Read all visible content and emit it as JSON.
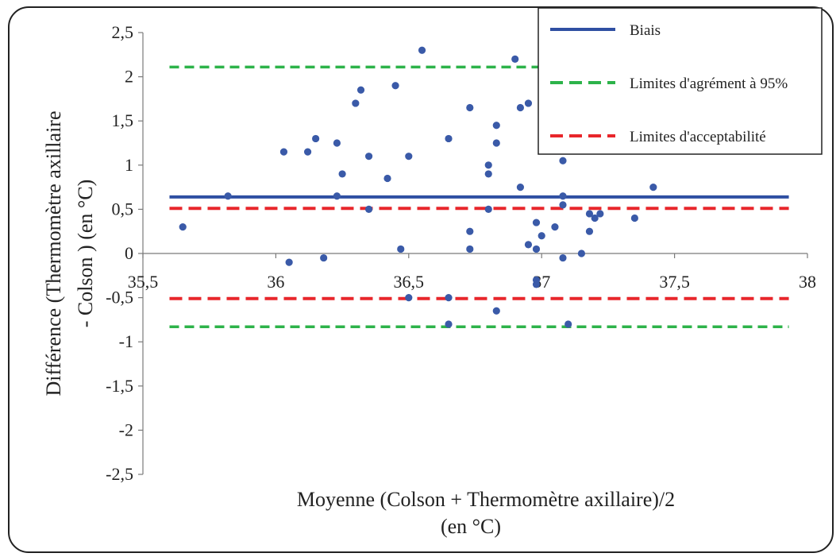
{
  "chart_data": {
    "type": "scatter",
    "xlabel_lines": [
      "Moyenne (Colson + Thermomètre axillaire)/2",
      "(en °C)"
    ],
    "ylabel_lines": [
      "Différence (Thermomètre axillaire",
      "- Colson ) (en °C)"
    ],
    "xlim": [
      35.5,
      38
    ],
    "ylim": [
      -2.5,
      2.5
    ],
    "x_ticks": [
      {
        "value": 35.5,
        "label": "35,5"
      },
      {
        "value": 36,
        "label": "36"
      },
      {
        "value": 36.5,
        "label": "36,5"
      },
      {
        "value": 37,
        "label": "37"
      },
      {
        "value": 37.5,
        "label": "37,5"
      },
      {
        "value": 38,
        "label": "38"
      }
    ],
    "y_ticks": [
      {
        "value": 2.5,
        "label": "2,5"
      },
      {
        "value": 2,
        "label": "2"
      },
      {
        "value": 1.5,
        "label": "1,5"
      },
      {
        "value": 1,
        "label": "1"
      },
      {
        "value": 0.5,
        "label": "0,5"
      },
      {
        "value": 0,
        "label": "0"
      },
      {
        "value": -0.5,
        "label": "-0,5"
      },
      {
        "value": -1,
        "label": "-1"
      },
      {
        "value": -1.5,
        "label": "-1,5"
      },
      {
        "value": -2,
        "label": "-2"
      },
      {
        "value": -2.5,
        "label": "-2,5"
      }
    ],
    "grid": {
      "horizontal": false,
      "vertical": false
    },
    "point_color": "#3a5aa8",
    "points": [
      [
        35.65,
        0.3
      ],
      [
        35.82,
        0.65
      ],
      [
        36.03,
        1.15
      ],
      [
        36.05,
        -0.1
      ],
      [
        36.12,
        1.15
      ],
      [
        36.15,
        1.3
      ],
      [
        36.18,
        -0.05
      ],
      [
        36.23,
        1.25
      ],
      [
        36.23,
        0.65
      ],
      [
        36.25,
        0.9
      ],
      [
        36.3,
        1.7
      ],
      [
        36.32,
        1.85
      ],
      [
        36.35,
        1.1
      ],
      [
        36.35,
        0.5
      ],
      [
        36.42,
        0.85
      ],
      [
        36.45,
        1.9
      ],
      [
        36.47,
        0.05
      ],
      [
        36.5,
        1.1
      ],
      [
        36.5,
        -0.5
      ],
      [
        36.55,
        2.3
      ],
      [
        36.65,
        1.3
      ],
      [
        36.65,
        -0.5
      ],
      [
        36.65,
        -0.8
      ],
      [
        36.73,
        1.65
      ],
      [
        36.73,
        0.25
      ],
      [
        36.73,
        0.05
      ],
      [
        36.8,
        1.0
      ],
      [
        36.8,
        0.9
      ],
      [
        36.8,
        0.5
      ],
      [
        36.83,
        1.45
      ],
      [
        36.83,
        1.25
      ],
      [
        36.83,
        -0.65
      ],
      [
        36.9,
        2.2
      ],
      [
        36.92,
        1.65
      ],
      [
        36.92,
        0.75
      ],
      [
        36.95,
        1.7
      ],
      [
        36.95,
        0.1
      ],
      [
        36.98,
        0.35
      ],
      [
        36.98,
        0.05
      ],
      [
        36.98,
        -0.3
      ],
      [
        36.98,
        -0.35
      ],
      [
        37.0,
        0.2
      ],
      [
        37.05,
        0.3
      ],
      [
        37.08,
        1.05
      ],
      [
        37.08,
        0.65
      ],
      [
        37.08,
        0.55
      ],
      [
        37.08,
        -0.05
      ],
      [
        37.1,
        -0.8
      ],
      [
        37.15,
        0.0
      ],
      [
        37.18,
        0.45
      ],
      [
        37.18,
        0.25
      ],
      [
        37.2,
        0.4
      ],
      [
        37.22,
        0.45
      ],
      [
        37.35,
        0.4
      ],
      [
        37.42,
        0.75
      ]
    ],
    "lines": [
      {
        "name": "Biais",
        "y": 0.64,
        "color": "#2f4fa2",
        "style": "solid"
      },
      {
        "name": "Limites d'agrément à 95%",
        "y": 2.11,
        "color": "#2db34a",
        "style": "dashed"
      },
      {
        "name": "Limites d'agrément à 95%",
        "y": -0.83,
        "color": "#2db34a",
        "style": "dashed"
      },
      {
        "name": "Limites d'acceptabilité",
        "y": 0.51,
        "color": "#e8262b",
        "style": "dashed"
      },
      {
        "name": "Limites d'acceptabilité",
        "y": -0.51,
        "color": "#e8262b",
        "style": "dashed"
      }
    ],
    "line_x_range": [
      35.6,
      37.93
    ],
    "legend": {
      "position": "top-right",
      "entries": [
        {
          "label": "Biais",
          "color": "#2f4fa2",
          "style": "solid"
        },
        {
          "label": "Limites d'agrément à 95%",
          "color": "#2db34a",
          "style": "dashed"
        },
        {
          "label": "Limites d'acceptabilité",
          "color": "#e8262b",
          "style": "dashed"
        }
      ]
    }
  }
}
